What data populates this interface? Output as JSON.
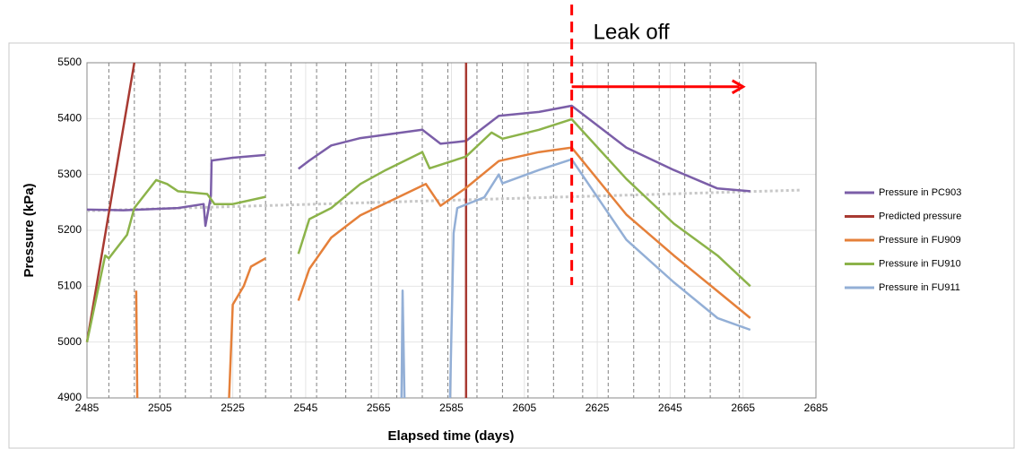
{
  "chart_data": {
    "type": "line",
    "x_label": "Elapsed time (days)",
    "y_label": "Pressure (kPa)",
    "xlim": [
      2485,
      2685
    ],
    "xticks": [
      2485,
      2505,
      2525,
      2545,
      2565,
      2585,
      2605,
      2625,
      2645,
      2665,
      2685
    ],
    "ylim": [
      4900,
      5500
    ],
    "yticks": [
      4900,
      5000,
      5100,
      5200,
      5300,
      5400,
      5500
    ],
    "grid": true,
    "legend": "right",
    "event_days": [
      2491,
      2498,
      2505,
      2512,
      2519,
      2527,
      2534,
      2541,
      2548,
      2556,
      2563,
      2570,
      2577,
      2584,
      2592,
      2599,
      2606,
      2613,
      2621,
      2628,
      2635,
      2642,
      2649,
      2656,
      2664
    ],
    "series": [
      {
        "name": "Pressure in PC903",
        "color": "#7b5ea8",
        "x": [
          2485,
          2495,
          2510,
          2517,
          2517.5,
          2519,
          2519.2,
          2525,
          2534,
          2538,
          2543,
          2546,
          2552,
          2560,
          2577,
          2582,
          2589,
          2598,
          2609,
          2618,
          2633,
          2646,
          2658,
          2667
        ],
        "values": [
          5237,
          5236,
          5240,
          5247,
          5208,
          5262,
          5325,
          5330,
          5335,
          null,
          5310,
          5325,
          5352,
          5365,
          5380,
          5355,
          5360,
          5405,
          5412,
          5423,
          5348,
          5308,
          5275,
          5270
        ]
      },
      {
        "name": "Predicted pressure",
        "color": "#a83a32",
        "x": [
          2485,
          2498,
          2540,
          2589,
          2589
        ],
        "values": [
          5000,
          5500,
          null,
          4900,
          5500
        ]
      },
      {
        "name": "Pressure in FU909",
        "color": "#e5803a",
        "x": [
          2498.5,
          2498.8,
          2510,
          2524,
          2525,
          2528,
          2530,
          2534,
          2538,
          2543,
          2546,
          2552,
          2560,
          2569,
          2578,
          2582,
          2589,
          2598,
          2609,
          2618,
          2633,
          2646,
          2658,
          2667
        ],
        "values": [
          5092,
          4900,
          null,
          4900,
          5067,
          5100,
          5135,
          5150,
          null,
          5074,
          5131,
          5187,
          5227,
          5255,
          5283,
          5244,
          5276,
          5324,
          5340,
          5348,
          5228,
          5155,
          5091,
          5043
        ]
      },
      {
        "name": "Pressure in FU910",
        "color": "#8cb34a",
        "x": [
          2485,
          2490,
          2491,
          2496,
          2498,
          2504,
          2507,
          2510,
          2518,
          2520,
          2525,
          2534,
          2538,
          2543,
          2546,
          2552,
          2560,
          2567,
          2577,
          2579,
          2589,
          2596,
          2599,
          2609,
          2618,
          2633,
          2646,
          2658,
          2667
        ],
        "values": [
          5000,
          5155,
          5150,
          5192,
          5240,
          5290,
          5283,
          5270,
          5265,
          5247,
          5247,
          5260,
          null,
          5158,
          5220,
          5240,
          5283,
          5308,
          5340,
          5311,
          5332,
          5375,
          5364,
          5380,
          5399,
          5292,
          5212,
          5155,
          5100
        ]
      },
      {
        "name": "Pressure in FU911",
        "color": "#93afd6",
        "x": [
          2571.3,
          2571.6,
          2572.1,
          2578,
          2584.6,
          2585.6,
          2586.6,
          2594,
          2598,
          2599,
          2609,
          2618,
          2633,
          2646,
          2658,
          2667
        ],
        "values": [
          4900,
          5092,
          4900,
          null,
          4900,
          5195,
          5240,
          5259,
          5300,
          5284,
          5308,
          5327,
          5183,
          5107,
          5043,
          5022
        ]
      }
    ],
    "trendline": {
      "color": "#c8c8c8",
      "x": [
        2485,
        2681
      ],
      "values": [
        5235,
        5272
      ]
    },
    "annotation": {
      "text": "Leak off",
      "color": "#ff0000",
      "x": 2618,
      "y_range": [
        5102,
        5604
      ],
      "arrow_x": [
        2618,
        2665
      ],
      "arrow_y": 5457
    }
  }
}
